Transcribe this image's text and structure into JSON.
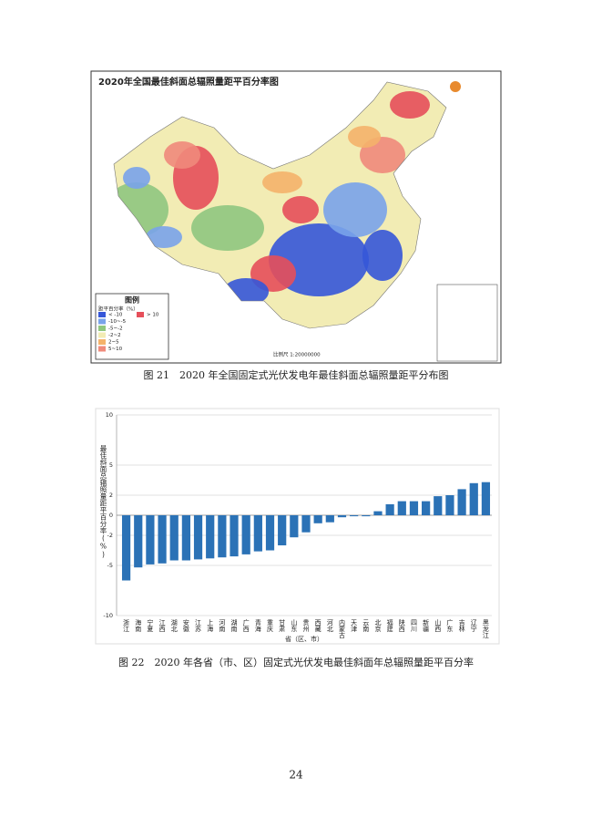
{
  "figure21": {
    "map_title": "2020年全国最佳斜面总辐照量距平百分率图",
    "legend_title": "图例",
    "legend_subtitle": "距平百分率（%）",
    "legend_items": [
      {
        "label": "< -10",
        "color": "#3556d8"
      },
      {
        "label": "-10~-5",
        "color": "#79a3ea"
      },
      {
        "label": "-5~-2",
        "color": "#8fc77f"
      },
      {
        "label": "-2~2",
        "color": "#f2ecb4"
      },
      {
        "label": "2~5",
        "color": "#f4b26a"
      },
      {
        "label": "5~10",
        "color": "#f08a7b"
      },
      {
        "label": "> 10",
        "color": "#e64f5a"
      }
    ],
    "scale": "比例尺 1:20000000",
    "caption": "图 21　2020 年全国固定式光伏发电年最佳斜面总辐照量距平分布图"
  },
  "chart_data": {
    "type": "bar",
    "y_label": "最佳斜面总辐照量距平百分率(%)",
    "x_label": "省（区、市）",
    "categories": [
      "浙江",
      "海南",
      "宁夏",
      "江西",
      "湖北",
      "安徽",
      "江苏",
      "上海",
      "河南",
      "湖南",
      "广西",
      "青海",
      "重庆",
      "甘肃",
      "山东",
      "贵州",
      "西藏",
      "河北",
      "内蒙古",
      "天津",
      "云南",
      "北京",
      "福建",
      "陕西",
      "四川",
      "新疆",
      "山西",
      "广东",
      "吉林",
      "辽宁",
      "黑龙江"
    ],
    "values": [
      -6.5,
      -5.2,
      -4.9,
      -4.8,
      -4.5,
      -4.5,
      -4.4,
      -4.3,
      -4.2,
      -4.1,
      -3.9,
      -3.6,
      -3.5,
      -3.0,
      -2.2,
      -1.7,
      -0.8,
      -0.7,
      -0.2,
      -0.1,
      -0.1,
      0.4,
      1.1,
      1.4,
      1.4,
      1.4,
      1.9,
      2.0,
      2.6,
      3.2,
      3.3
    ],
    "color": "#2b72b6",
    "ylim": [
      -10,
      10
    ],
    "yticks": [
      -10,
      -5,
      -2,
      0,
      2,
      5,
      10
    ],
    "grid": true,
    "caption": "图 22　2020 年各省（市、区）固定式光伏发电最佳斜面年总辐照量距平百分率"
  },
  "page_number": "24"
}
